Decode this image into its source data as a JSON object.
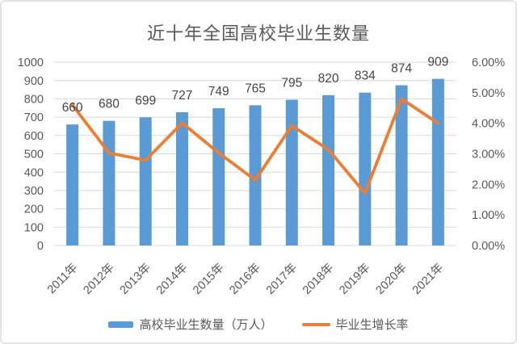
{
  "chart_data": {
    "type": "combo-bar-line",
    "title": "近十年全国高校毕业生数量",
    "categories": [
      "2011年",
      "2012年",
      "2013年",
      "2014年",
      "2015年",
      "2016年",
      "2017年",
      "2018年",
      "2019年",
      "2020年",
      "2021年"
    ],
    "series": [
      {
        "name": "高校毕业生数量（万人）",
        "chart_type": "bar",
        "axis": "left",
        "color": "#5B9BD5",
        "values": [
          660,
          680,
          699,
          727,
          749,
          765,
          795,
          820,
          834,
          874,
          909
        ],
        "data_labels": [
          "660",
          "680",
          "699",
          "727",
          "749",
          "765",
          "795",
          "820",
          "834",
          "874",
          "909"
        ]
      },
      {
        "name": "毕业生增长率",
        "chart_type": "line",
        "axis": "right",
        "color": "#ED7D31",
        "values_pct": [
          4.6,
          3.03,
          2.79,
          4.01,
          3.03,
          2.14,
          3.92,
          3.14,
          1.71,
          4.8,
          4.0
        ]
      }
    ],
    "left_axis": {
      "range": [
        0,
        1000
      ],
      "step": 100,
      "tick_labels": [
        "0",
        "100",
        "200",
        "300",
        "400",
        "500",
        "600",
        "700",
        "800",
        "900",
        "1000"
      ]
    },
    "right_axis": {
      "range": [
        0,
        6
      ],
      "step": 1,
      "tick_labels": [
        "0.00%",
        "1.00%",
        "2.00%",
        "3.00%",
        "4.00%",
        "5.00%",
        "6.00%"
      ]
    },
    "grid": "horizontal",
    "legend_position": "bottom"
  },
  "colors": {
    "bar": "#5B9BD5",
    "line": "#ED7D31",
    "grid": "#D9D9D9",
    "axis_text": "#595959",
    "title_text": "#595959",
    "data_label_text": "#454545",
    "background": "#FFFFFF",
    "border": "#E4E4E4"
  }
}
